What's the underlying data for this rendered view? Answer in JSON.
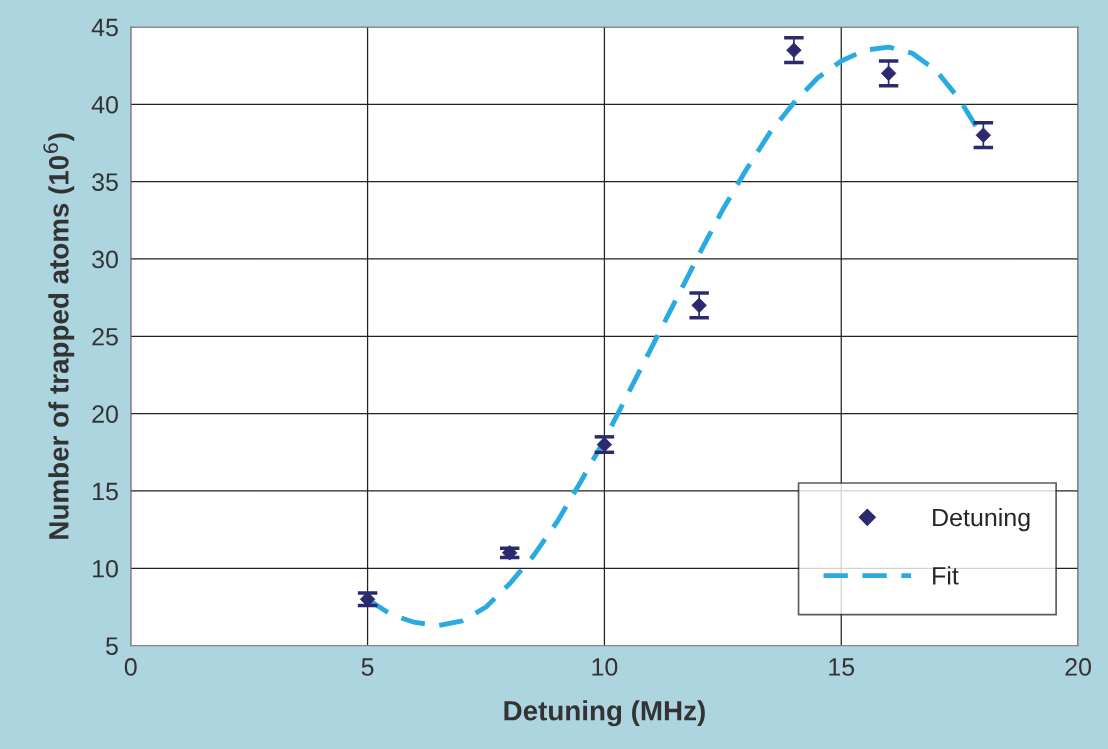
{
  "chart_data": {
    "type": "scatter",
    "xlabel": "Detuning (MHz)",
    "ylabel": "Number of trapped atoms (10$^{6}$)",
    "xlim": [
      0,
      20
    ],
    "xticks": [
      0,
      5,
      10,
      15,
      20
    ],
    "ylim": [
      5,
      45
    ],
    "yticks": [
      5,
      10,
      15,
      20,
      25,
      30,
      35,
      40,
      45
    ],
    "grid": true,
    "legend": "bottom right",
    "series": [
      {
        "name": "Detuning",
        "marker": "diamond",
        "color": "#2b2a6e",
        "x": [
          5,
          8,
          10,
          12,
          14,
          16,
          18
        ],
        "values": [
          8,
          11,
          18,
          27,
          43.5,
          42,
          38
        ],
        "errors": [
          0.4,
          0.3,
          0.5,
          0.8,
          0.8,
          0.8,
          0.8
        ]
      },
      {
        "name": "Fit",
        "type": "line",
        "line_style": "dashed",
        "color": "#29abe2",
        "x": [
          5,
          5.5,
          6,
          6.5,
          7,
          7.5,
          8,
          8.5,
          9,
          9.5,
          10,
          10.5,
          11,
          11.5,
          12,
          12.5,
          13,
          13.5,
          14,
          14.5,
          15,
          15.5,
          16,
          16.5,
          17,
          17.5,
          18
        ],
        "values": [
          8.0,
          7.0,
          6.5,
          6.3,
          6.6,
          7.5,
          9.0,
          10.8,
          13.0,
          15.6,
          18.3,
          21.3,
          24.3,
          27.3,
          30.3,
          33.2,
          35.8,
          38.2,
          40.1,
          41.7,
          42.8,
          43.5,
          43.7,
          43.3,
          42.2,
          40.3,
          37.8
        ]
      }
    ]
  }
}
